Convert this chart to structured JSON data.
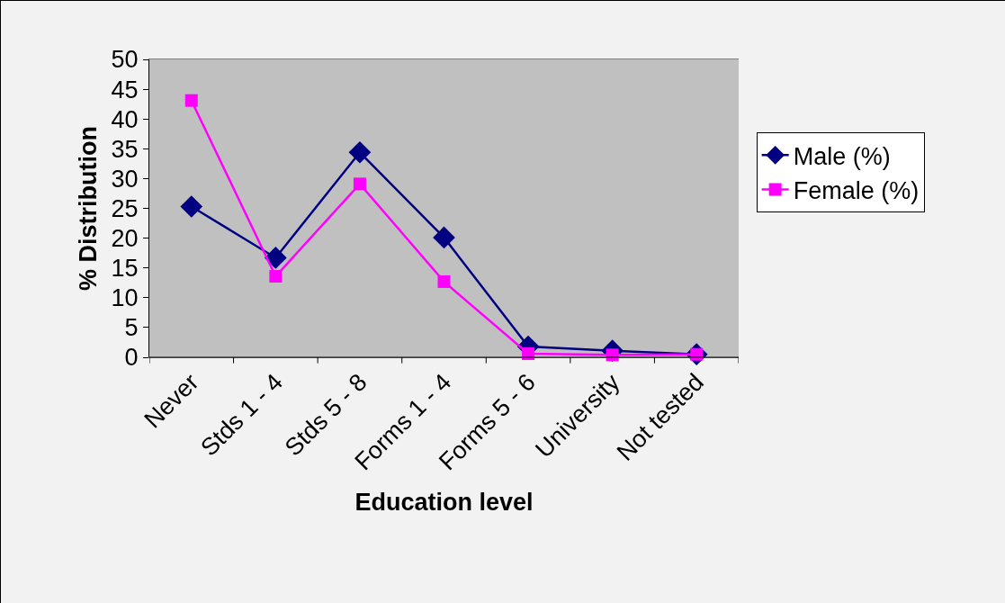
{
  "chart_data": {
    "type": "line",
    "xlabel": "Education level",
    "ylabel": "% Distribution",
    "categories": [
      "Never",
      "Stds 1 - 4",
      "Stds 5 - 8",
      "Forms 1 - 4",
      "Forms 5 - 6",
      "University",
      "Not tested"
    ],
    "series": [
      {
        "name": "Male (%)",
        "color": "#000080",
        "marker": "diamond",
        "values": [
          25.3,
          16.7,
          34.4,
          20.1,
          1.8,
          1.1,
          0.5
        ]
      },
      {
        "name": "Female (%)",
        "color": "#ff00ff",
        "marker": "square",
        "values": [
          43.1,
          13.6,
          29.1,
          12.7,
          0.6,
          0.4,
          0.5
        ]
      }
    ],
    "ylim": [
      0,
      50
    ],
    "yticks": [
      0,
      5,
      10,
      15,
      20,
      25,
      30,
      35,
      40,
      45,
      50
    ],
    "grid": false,
    "legend": "right",
    "line_style": "solid"
  }
}
